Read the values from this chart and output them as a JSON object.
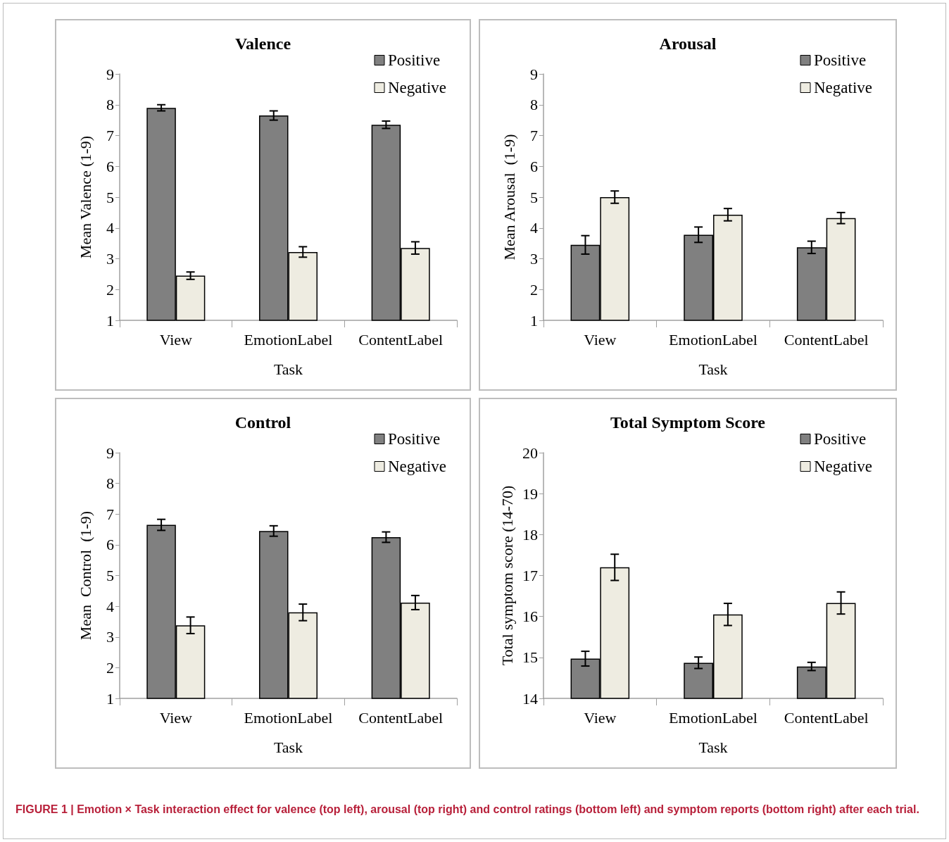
{
  "chart_data": [
    {
      "type": "bar",
      "title": "Valence",
      "xlabel": "Task",
      "ylabel": "Mean Valence (1-9)",
      "categories": [
        "View",
        "EmotionLabel",
        "ContentLabel"
      ],
      "ylim": [
        1,
        9
      ],
      "yticks": [
        1,
        2,
        3,
        4,
        5,
        6,
        7,
        8,
        9
      ],
      "grid": false,
      "legend": "top right",
      "series": [
        {
          "name": "Positive",
          "color": "#808080",
          "values": [
            7.9,
            7.65,
            7.35
          ],
          "errors": [
            0.1,
            0.15,
            0.12
          ]
        },
        {
          "name": "Negative",
          "color": "#eeece1",
          "values": [
            2.45,
            3.22,
            3.35
          ],
          "errors": [
            0.12,
            0.17,
            0.2
          ]
        }
      ]
    },
    {
      "type": "bar",
      "title": "Arousal",
      "xlabel": "Task",
      "ylabel": "Mean Arousal  (1-9)",
      "categories": [
        "View",
        "EmotionLabel",
        "ContentLabel"
      ],
      "ylim": [
        1,
        9
      ],
      "yticks": [
        1,
        2,
        3,
        4,
        5,
        6,
        7,
        8,
        9
      ],
      "grid": false,
      "legend": "top right",
      "series": [
        {
          "name": "Positive",
          "color": "#808080",
          "values": [
            3.45,
            3.78,
            3.37
          ],
          "errors": [
            0.3,
            0.25,
            0.2
          ]
        },
        {
          "name": "Negative",
          "color": "#eeece1",
          "values": [
            5.0,
            4.43,
            4.32
          ],
          "errors": [
            0.2,
            0.2,
            0.18
          ]
        }
      ]
    },
    {
      "type": "bar",
      "title": "Control",
      "xlabel": "Task",
      "ylabel": "Mean  Control  (1-9)",
      "categories": [
        "View",
        "EmotionLabel",
        "ContentLabel"
      ],
      "ylim": [
        1,
        9
      ],
      "yticks": [
        1,
        2,
        3,
        4,
        5,
        6,
        7,
        8,
        9
      ],
      "grid": false,
      "legend": "top right",
      "series": [
        {
          "name": "Positive",
          "color": "#808080",
          "values": [
            6.65,
            6.45,
            6.25
          ],
          "errors": [
            0.18,
            0.17,
            0.17
          ]
        },
        {
          "name": "Negative",
          "color": "#eeece1",
          "values": [
            3.38,
            3.8,
            4.12
          ],
          "errors": [
            0.27,
            0.27,
            0.23
          ]
        }
      ]
    },
    {
      "type": "bar",
      "title": "Total Symptom Score",
      "xlabel": "Task",
      "ylabel": "Total symptom score (14-70)",
      "categories": [
        "View",
        "EmotionLabel",
        "ContentLabel"
      ],
      "ylim": [
        14,
        20
      ],
      "yticks": [
        14,
        15,
        16,
        17,
        18,
        19,
        20
      ],
      "grid": false,
      "legend": "top right",
      "annotations": [
        "FIGURE 1 | Emotion × Task interaction effect for valence (top left), arousal (top right) and control ratings (bottom left) and symptom reports (bottom right) after each trial."
      ],
      "series": [
        {
          "name": "Positive",
          "color": "#808080",
          "values": [
            14.97,
            14.87,
            14.78
          ],
          "errors": [
            0.18,
            0.14,
            0.1
          ]
        },
        {
          "name": "Negative",
          "color": "#eeece1",
          "values": [
            17.2,
            16.05,
            16.33
          ],
          "errors": [
            0.32,
            0.27,
            0.27
          ]
        }
      ]
    }
  ]
}
